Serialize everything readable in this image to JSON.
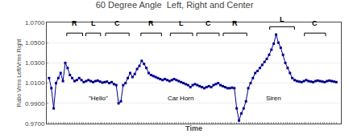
{
  "chart_data": {
    "type": "line",
    "title": "60 Degree Angle  Left, Right and Center",
    "xlabel": "Time",
    "ylabel": "Ratio Vrms Left/Vrms Right",
    "x": [
      0,
      1,
      2,
      3,
      4,
      5,
      6,
      7,
      8,
      9,
      10,
      11,
      12,
      13,
      14,
      15,
      16,
      17,
      18,
      19,
      20,
      21,
      22,
      23,
      24,
      25,
      26,
      27,
      28,
      29,
      30,
      31,
      32,
      33,
      34,
      35,
      36,
      37,
      38,
      39,
      40,
      41,
      42,
      43,
      44,
      45,
      46,
      47,
      48,
      49,
      50,
      51,
      52,
      53,
      54,
      55,
      56,
      57,
      58,
      59,
      60,
      61,
      62,
      63,
      64,
      65,
      66,
      67,
      68,
      69,
      70,
      71,
      72,
      73,
      74,
      75,
      76,
      77,
      78,
      79,
      80,
      81,
      82,
      83,
      84,
      85,
      86,
      87,
      88,
      89,
      90,
      91,
      92,
      93,
      94,
      95,
      96,
      97,
      98,
      99,
      100,
      101,
      102,
      103,
      104,
      105,
      106,
      107,
      108,
      109,
      110,
      111,
      112,
      113,
      114,
      115,
      116,
      117,
      118,
      119,
      120,
      121,
      122,
      123,
      124
    ],
    "values": [
      1.015,
      1.005,
      0.985,
      1.01,
      1.015,
      1.02,
      1.012,
      1.03,
      1.025,
      1.018,
      1.015,
      1.012,
      1.013,
      1.015,
      1.013,
      1.011,
      1.012,
      1.013,
      1.012,
      1.011,
      1.012,
      1.0125,
      1.0115,
      1.0105,
      1.011,
      1.0115,
      1.01,
      1.011,
      1.009,
      1.008,
      0.99,
      0.992,
      1.008,
      1.01,
      1.015,
      1.02,
      1.016,
      1.019,
      1.024,
      1.027,
      1.032,
      1.029,
      1.025,
      1.02,
      1.018,
      1.017,
      1.016,
      1.015,
      1.014,
      1.013,
      1.014,
      1.013,
      1.012,
      1.013,
      1.014,
      1.013,
      1.012,
      1.011,
      1.01,
      1.009,
      1.008,
      1.006,
      1.008,
      1.009,
      1.008,
      1.007,
      1.006,
      1.005,
      1.006,
      1.007,
      1.006,
      1.008,
      1.009,
      1.01,
      1.008,
      1.007,
      1.006,
      1.005,
      1.005,
      1.0055,
      1.005,
      0.985,
      0.973,
      0.98,
      0.985,
      0.992,
      1.005,
      1.01,
      1.015,
      1.02,
      1.022,
      1.025,
      1.028,
      1.031,
      1.034,
      1.038,
      1.043,
      1.049,
      1.058,
      1.05,
      1.045,
      1.038,
      1.03,
      1.025,
      1.02,
      1.015,
      1.013,
      1.012,
      1.0115,
      1.011,
      1.012,
      1.013,
      1.012,
      1.0115,
      1.011,
      1.012,
      1.0125,
      1.012,
      1.0115,
      1.011,
      1.012,
      1.0125,
      1.012,
      1.0115,
      1.011
    ],
    "color": "#00008B",
    "marker": "square",
    "xlim": [
      -1,
      126
    ],
    "xticks": [
      0,
      1,
      2,
      3,
      4,
      5,
      6,
      7,
      8,
      9,
      10,
      11,
      12,
      13,
      14,
      15,
      16,
      17,
      18,
      19,
      20,
      21,
      22,
      23,
      24,
      25,
      26,
      27,
      28,
      29,
      30,
      31,
      32,
      33,
      34,
      35,
      36,
      37,
      38,
      39,
      40,
      41,
      42,
      43,
      44,
      45,
      46,
      47,
      48,
      49,
      50,
      51,
      52,
      53,
      54,
      55,
      56,
      57,
      58,
      59,
      60,
      61,
      62,
      63,
      64,
      65,
      66,
      67,
      68,
      69,
      70,
      71,
      72,
      73,
      74,
      75,
      76,
      77,
      78,
      79,
      80,
      81,
      82,
      83,
      84,
      85,
      86,
      87,
      88,
      89,
      90,
      91,
      92,
      93,
      94,
      95,
      96,
      97,
      98,
      99,
      100,
      101,
      102,
      103,
      104,
      105,
      106,
      107,
      108,
      109,
      110,
      111,
      112,
      113,
      114,
      115,
      116,
      117,
      118,
      119,
      120,
      121,
      122,
      123,
      124
    ],
    "ylim": [
      0.97,
      1.07
    ],
    "yticks": [
      {
        "value": 0.97,
        "label": "0.9700"
      },
      {
        "value": 0.99,
        "label": "0.9900"
      },
      {
        "value": 1.01,
        "label": "1.0100"
      },
      {
        "value": 1.03,
        "label": "1.0300"
      },
      {
        "value": 1.05,
        "label": "1.0500"
      },
      {
        "value": 1.07,
        "label": "1.0700"
      }
    ],
    "grid": "y",
    "tick_labels": "y",
    "annotations": [
      "R",
      "L",
      "C",
      "R",
      "L",
      "C",
      "R",
      "L",
      "C",
      "\"Hello\"",
      "Car Horn",
      "Siren"
    ]
  }
}
